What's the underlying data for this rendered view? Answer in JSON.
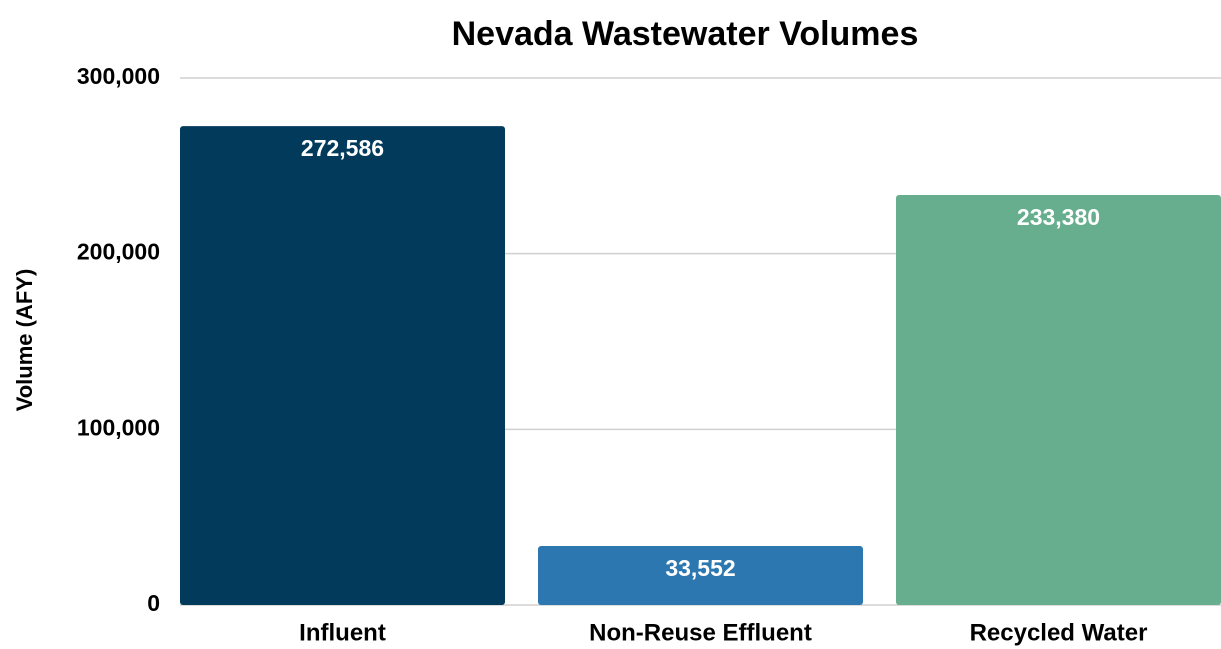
{
  "chart_data": {
    "type": "bar",
    "title": "Nevada Wastewater Volumes",
    "y_label": "Volume (AFY)",
    "categories": [
      "Influent",
      "Non-Reuse Effluent",
      "Recycled Water"
    ],
    "values": [
      272586,
      33552,
      233380
    ],
    "value_labels": [
      "272,586",
      "33,552",
      "233,380"
    ],
    "colors": [
      "#023a5c",
      "#2c77b0",
      "#66ae8e"
    ],
    "ylim": [
      0,
      300000
    ],
    "yticks": [
      {
        "value": 0,
        "label": "0"
      },
      {
        "value": 100000,
        "label": "100,000"
      },
      {
        "value": 200000,
        "label": "200,000"
      },
      {
        "value": 300000,
        "label": "300,000"
      }
    ],
    "grid": true
  }
}
